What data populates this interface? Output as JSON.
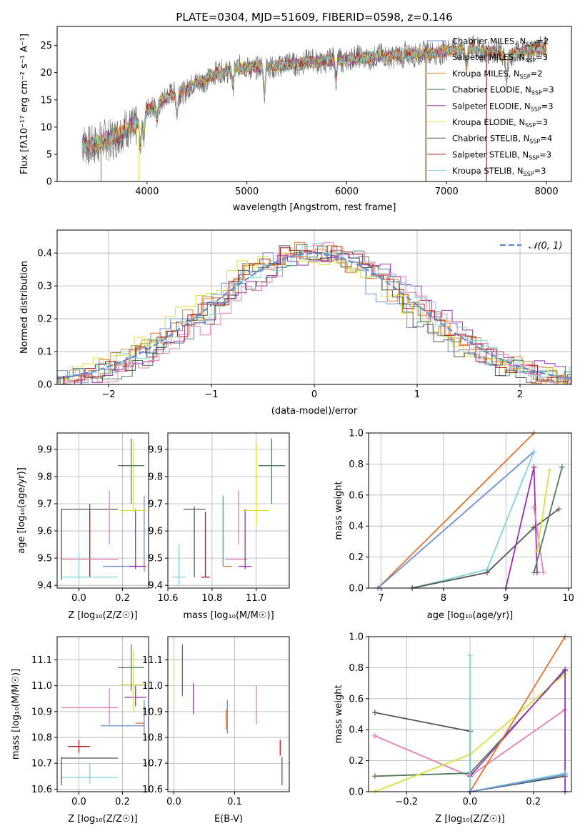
{
  "figure_title": "PLATE=0304, MJD=51609, FIBERID=0598, z=0.146",
  "colors": {
    "Chabrier MILES": "#6a8fd0",
    "Salpeter MILES": "#e2732c",
    "Kroupa MILES": "#c98a2e",
    "Chabrier ELODIE": "#4f7d5a",
    "Salpeter ELODIE": "#9b2fb5",
    "Kroupa ELODIE": "#d6e23c",
    "Chabrier STELIB": "#555555",
    "Salpeter STELIB": "#b01818",
    "Kroupa STELIB": "#7fd6d6",
    "pink": "#e47fb0",
    "normal": "#5b8bd9"
  },
  "chart_data": [
    {
      "id": "spectrum",
      "type": "line",
      "title": "PLATE=0304, MJD=51609, FIBERID=0598, z=0.146",
      "xlabel": "wavelength [Angstrom, rest frame]",
      "ylabel": "Flux [fλ10⁻¹⁷ erg cm⁻² s⁻¹ A⁻¹]",
      "xlim": [
        3100,
        8250
      ],
      "ylim": [
        0,
        28.5
      ],
      "xticks": [
        4000,
        5000,
        6000,
        7000,
        8000
      ],
      "yticks": [
        0,
        5,
        10,
        15,
        20,
        25
      ],
      "grid": false,
      "legend_position": "upper-right",
      "legend": [
        {
          "label": "Chabrier MILES, N",
          "sub": "SSP",
          "suffix": "=2",
          "color": "#6a8fd0"
        },
        {
          "label": "Salpeter MILES, N",
          "sub": "SSP",
          "suffix": "=3",
          "color": "#e2732c"
        },
        {
          "label": "Kroupa MILES, N",
          "sub": "SSP",
          "suffix": "=2",
          "color": "#c98a2e"
        },
        {
          "label": "Chabrier ELODIE, N",
          "sub": "SSP",
          "suffix": "=3",
          "color": "#4f7d5a"
        },
        {
          "label": "Salpeter ELODIE, N",
          "sub": "SSP",
          "suffix": "=3",
          "color": "#9b2fb5"
        },
        {
          "label": "Kroupa ELODIE, N",
          "sub": "SSP",
          "suffix": "=3",
          "color": "#d6e23c"
        },
        {
          "label": "Chabrier STELIB, N",
          "sub": "SSP",
          "suffix": "=4",
          "color": "#555555"
        },
        {
          "label": "Salpeter STELIB, N",
          "sub": "SSP",
          "suffix": "=3",
          "color": "#b01818"
        },
        {
          "label": "Kroupa STELIB, N",
          "sub": "SSP",
          "suffix": "=3",
          "color": "#7fd6d6"
        }
      ],
      "continuum": [
        [
          3350,
          7
        ],
        [
          3500,
          6.8
        ],
        [
          3700,
          8.5
        ],
        [
          3900,
          10.5
        ],
        [
          4000,
          13
        ],
        [
          4200,
          15.5
        ],
        [
          4400,
          17
        ],
        [
          4600,
          19
        ],
        [
          4800,
          20.5
        ],
        [
          5000,
          21
        ],
        [
          5200,
          21
        ],
        [
          5400,
          21.5
        ],
        [
          5600,
          22
        ],
        [
          5800,
          22.2
        ],
        [
          6000,
          22.5
        ],
        [
          6200,
          22.8
        ],
        [
          6400,
          23
        ],
        [
          6600,
          23.5
        ],
        [
          6800,
          23.5
        ],
        [
          7000,
          24
        ],
        [
          7200,
          24.5
        ],
        [
          7400,
          24
        ],
        [
          7600,
          23
        ],
        [
          7800,
          24
        ],
        [
          8000,
          24.5
        ]
      ],
      "absorption": [
        [
          3934,
          5
        ],
        [
          3968,
          4
        ],
        [
          4102,
          3
        ],
        [
          4300,
          4
        ],
        [
          4861,
          3
        ],
        [
          5175,
          5
        ],
        [
          5893,
          4
        ],
        [
          6563,
          2
        ],
        [
          7200,
          4
        ],
        [
          7600,
          5
        ]
      ],
      "dropouts": [
        [
          3540,
          "#e2732c"
        ],
        [
          3920,
          "#d6e23c"
        ],
        [
          6790,
          "#e2732c"
        ],
        [
          6800,
          "#7fd6d6"
        ],
        [
          7400,
          "#b01818"
        ]
      ]
    },
    {
      "id": "residuals",
      "type": "histogram",
      "xlabel": "(data-model)/error",
      "ylabel": "Normed distribution",
      "xlim": [
        -2.5,
        2.5
      ],
      "ylim": [
        0,
        0.47
      ],
      "xticks": [
        -2,
        -1,
        0,
        1,
        2
      ],
      "yticks": [
        0.0,
        0.1,
        0.2,
        0.3,
        0.4
      ],
      "grid": true,
      "legend_position": "upper-right",
      "legend": [
        {
          "label": "𝒩(0, 1)",
          "color": "#5b8bd9",
          "style": "dashed"
        }
      ],
      "curve": "normal(0,1)",
      "bin_width": 0.1
    },
    {
      "id": "age-vs-Z",
      "type": "errorbar",
      "xlabel": "Z [log10(Z/Z☉)]",
      "ylabel": "age  [log10(age/yr)]",
      "xlim": [
        -0.1,
        0.32
      ],
      "ylim": [
        9.39,
        9.96
      ],
      "xticks": [
        0.0,
        0.2
      ],
      "yticks": [
        9.4,
        9.5,
        9.6,
        9.7,
        9.8,
        9.9
      ],
      "grid": true,
      "points": [
        {
          "c": "Chabrier STELIB",
          "x": 0.05,
          "xe": 0.13,
          "y": 9.68,
          "ye": 0.02
        },
        {
          "c": "Chabrier STELIB",
          "x": -0.08,
          "xe": 0.0,
          "y": 9.55,
          "ye": 0.13
        },
        {
          "c": "Salpeter STELIB",
          "x": 0.05,
          "xe": 0.0,
          "y": 9.55,
          "ye": 0.12
        },
        {
          "c": "Kroupa STELIB",
          "x": 0.05,
          "xe": 0.13,
          "y": 9.43,
          "ye": 0.0
        },
        {
          "c": "Kroupa STELIB",
          "x": 0.0,
          "xe": 0.0,
          "y": 9.47,
          "ye": 0.05
        },
        {
          "c": "pink",
          "x": 0.05,
          "xe": 0.13,
          "y": 9.495,
          "ye": 0.0
        },
        {
          "c": "pink",
          "x": 0.14,
          "xe": 0.0,
          "y": 9.65,
          "ye": 0.1
        },
        {
          "c": "Chabrier MILES",
          "x": 0.2,
          "xe": 0.09,
          "y": 9.47,
          "ye": 0.0
        },
        {
          "c": "Chabrier MILES",
          "x": 0.3,
          "xe": 0.0,
          "y": 9.6,
          "ye": 0.13
        },
        {
          "c": "Salpeter ELODIE",
          "x": 0.27,
          "xe": 0.04,
          "y": 9.47,
          "ye": 0.0
        },
        {
          "c": "Salpeter ELODIE",
          "x": 0.26,
          "xe": 0.0,
          "y": 9.57,
          "ye": 0.11
        },
        {
          "c": "Kroupa ELODIE",
          "x": 0.25,
          "xe": 0.06,
          "y": 9.675,
          "ye": 0.0
        },
        {
          "c": "Kroupa ELODIE",
          "x": 0.25,
          "xe": 0.0,
          "y": 9.8,
          "ye": 0.13
        },
        {
          "c": "Chabrier ELODIE",
          "x": 0.24,
          "xe": 0.06,
          "y": 9.84,
          "ye": 0.0
        },
        {
          "c": "Chabrier ELODIE",
          "x": 0.24,
          "xe": 0.0,
          "y": 9.82,
          "ye": 0.12
        },
        {
          "c": "Salpeter MILES",
          "x": 0.3,
          "xe": 0.0,
          "y": 9.47,
          "ye": 0.02
        }
      ]
    },
    {
      "id": "age-vs-mass",
      "type": "errorbar",
      "xlabel": "mass [log10(M/M☉)]",
      "ylabel": "",
      "xlim": [
        10.6,
        11.15
      ],
      "ylim": [
        9.39,
        9.96
      ],
      "xticks": [
        10.6,
        10.8,
        11.0
      ],
      "yticks": [
        9.4,
        9.5,
        9.6,
        9.7,
        9.8,
        9.9
      ],
      "grid": true,
      "points": [
        {
          "c": "Kroupa STELIB",
          "x": 10.65,
          "xe": 0.03,
          "y": 9.43,
          "ye": 0.0
        },
        {
          "c": "Kroupa STELIB",
          "x": 10.65,
          "xe": 0.0,
          "y": 9.475,
          "ye": 0.075
        },
        {
          "c": "Chabrier STELIB",
          "x": 10.72,
          "xe": 0.05,
          "y": 9.68,
          "ye": 0.0
        },
        {
          "c": "Chabrier STELIB",
          "x": 10.72,
          "xe": 0.0,
          "y": 9.56,
          "ye": 0.13
        },
        {
          "c": "Salpeter STELIB",
          "x": 10.77,
          "xe": 0.02,
          "y": 9.43,
          "ye": 0.0
        },
        {
          "c": "Salpeter STELIB",
          "x": 10.77,
          "xe": 0.0,
          "y": 9.55,
          "ye": 0.12
        },
        {
          "c": "Chabrier MILES",
          "x": 10.85,
          "xe": 0.0,
          "y": 9.6,
          "ye": 0.13
        },
        {
          "c": "pink",
          "x": 10.91,
          "xe": 0.05,
          "y": 9.495,
          "ye": 0.0
        },
        {
          "c": "pink",
          "x": 10.92,
          "xe": 0.0,
          "y": 9.65,
          "ye": 0.1
        },
        {
          "c": "Salpeter ELODIE",
          "x": 10.95,
          "xe": 0.03,
          "y": 9.47,
          "ye": 0.0
        },
        {
          "c": "Salpeter ELODIE",
          "x": 10.95,
          "xe": 0.0,
          "y": 9.57,
          "ye": 0.11
        },
        {
          "c": "Salpeter MILES",
          "x": 10.87,
          "xe": 0.02,
          "y": 9.47,
          "ye": 0.0
        },
        {
          "c": "Kroupa ELODIE",
          "x": 11.0,
          "xe": 0.06,
          "y": 9.675,
          "ye": 0.0
        },
        {
          "c": "Kroupa ELODIE",
          "x": 11.0,
          "xe": 0.0,
          "y": 9.77,
          "ye": 0.15
        },
        {
          "c": "Chabrier ELODIE",
          "x": 11.07,
          "xe": 0.06,
          "y": 9.84,
          "ye": 0.0
        },
        {
          "c": "Chabrier ELODIE",
          "x": 11.07,
          "xe": 0.0,
          "y": 9.82,
          "ye": 0.12
        }
      ]
    },
    {
      "id": "massweight-vs-age",
      "type": "line",
      "xlabel": "age  [log10(age/yr)]",
      "ylabel": "mass weight",
      "xlim": [
        6.8,
        10.05
      ],
      "ylim": [
        0,
        1.0
      ],
      "xticks": [
        7,
        8,
        9,
        10
      ],
      "yticks": [
        0.0,
        0.2,
        0.4,
        0.6,
        0.8,
        1.0
      ],
      "grid": true,
      "series": [
        {
          "c": "Salpeter MILES",
          "x": [
            6.95,
            9.45
          ],
          "y": [
            0.0,
            1.0
          ]
        },
        {
          "c": "Chabrier MILES",
          "x": [
            6.95,
            9.45
          ],
          "y": [
            0.0,
            0.88
          ]
        },
        {
          "c": "Kroupa STELIB",
          "x": [
            7.5,
            8.7,
            9.45
          ],
          "y": [
            0.0,
            0.12,
            0.88
          ]
        },
        {
          "c": "Chabrier STELIB",
          "x": [
            7.5,
            8.7,
            9.45,
            9.85
          ],
          "y": [
            0.0,
            0.1,
            0.39,
            0.51
          ]
        },
        {
          "c": "Salpeter ELODIE",
          "x": [
            9.0,
            9.45,
            9.5
          ],
          "y": [
            0.0,
            0.78,
            0.1
          ]
        },
        {
          "c": "pink",
          "x": [
            9.45,
            9.6
          ],
          "y": [
            0.52,
            0.1
          ]
        },
        {
          "c": "Kroupa ELODIE",
          "x": [
            9.5,
            9.7
          ],
          "y": [
            0.24,
            0.76
          ]
        },
        {
          "c": "Chabrier ELODIE",
          "x": [
            9.45,
            9.9
          ],
          "y": [
            0.1,
            0.78
          ]
        }
      ]
    },
    {
      "id": "mass-vs-Z",
      "type": "errorbar",
      "xlabel": "Z [log10(Z/Z☉)]",
      "ylabel": "mass [log10(M/M☉)]",
      "xlim": [
        -0.1,
        0.32
      ],
      "ylim": [
        10.59,
        11.19
      ],
      "xticks": [
        0.0,
        0.2
      ],
      "yticks": [
        10.6,
        10.7,
        10.8,
        10.9,
        11.0,
        11.1
      ],
      "grid": true,
      "points": [
        {
          "c": "Kroupa STELIB",
          "x": 0.05,
          "xe": 0.13,
          "y": 10.645,
          "ye": 0.0
        },
        {
          "c": "Kroupa STELIB",
          "x": 0.05,
          "xe": 0.0,
          "y": 10.66,
          "ye": 0.04
        },
        {
          "c": "Chabrier STELIB",
          "x": 0.05,
          "xe": 0.13,
          "y": 10.72,
          "ye": 0.0
        },
        {
          "c": "Chabrier STELIB",
          "x": -0.08,
          "xe": 0.0,
          "y": 10.67,
          "ye": 0.055
        },
        {
          "c": "Salpeter STELIB",
          "x": 0.0,
          "xe": 0.05,
          "y": 10.765,
          "ye": 0.0
        },
        {
          "c": "Salpeter STELIB",
          "x": 0.0,
          "xe": 0.0,
          "y": 10.765,
          "ye": 0.025
        },
        {
          "c": "pink",
          "x": 0.05,
          "xe": 0.13,
          "y": 10.915,
          "ye": 0.0
        },
        {
          "c": "pink",
          "x": 0.14,
          "xe": 0.0,
          "y": 10.92,
          "ye": 0.07
        },
        {
          "c": "Chabrier MILES",
          "x": 0.2,
          "xe": 0.1,
          "y": 10.845,
          "ye": 0.0
        },
        {
          "c": "Chabrier MILES",
          "x": 0.3,
          "xe": 0.0,
          "y": 10.88,
          "ye": 0.065
        },
        {
          "c": "Salpeter MILES",
          "x": 0.28,
          "xe": 0.02,
          "y": 10.855,
          "ye": 0.0
        },
        {
          "c": "Salpeter ELODIE",
          "x": 0.26,
          "xe": 0.05,
          "y": 10.955,
          "ye": 0.0
        },
        {
          "c": "Salpeter ELODIE",
          "x": 0.26,
          "xe": 0.0,
          "y": 10.96,
          "ye": 0.04
        },
        {
          "c": "Kroupa ELODIE",
          "x": 0.25,
          "xe": 0.06,
          "y": 11.005,
          "ye": 0.0
        },
        {
          "c": "Kroupa ELODIE",
          "x": 0.25,
          "xe": 0.0,
          "y": 11.02,
          "ye": 0.12
        },
        {
          "c": "Chabrier ELODIE",
          "x": 0.24,
          "xe": 0.06,
          "y": 11.07,
          "ye": 0.0
        },
        {
          "c": "Chabrier ELODIE",
          "x": 0.24,
          "xe": 0.0,
          "y": 11.07,
          "ye": 0.09
        }
      ]
    },
    {
      "id": "mass-vs-EBV",
      "type": "errorbar",
      "xlabel": "E(B-V)",
      "ylabel": "",
      "xlim": [
        -0.01,
        0.19
      ],
      "ylim": [
        10.59,
        11.19
      ],
      "xticks": [
        0.0,
        0.1
      ],
      "yticks": [
        10.6,
        10.7,
        10.8,
        10.9,
        11.0,
        11.1
      ],
      "grid": true,
      "points": [
        {
          "c": "Kroupa ELODIE",
          "x": 0.0,
          "xe": 0.0,
          "y": 11.02,
          "ye": 0.1
        },
        {
          "c": "Chabrier ELODIE",
          "x": 0.014,
          "xe": 0.0,
          "y": 11.06,
          "ye": 0.1
        },
        {
          "c": "Salpeter ELODIE",
          "x": 0.032,
          "xe": 0.0,
          "y": 10.95,
          "ye": 0.06
        },
        {
          "c": "Salpeter MILES",
          "x": 0.086,
          "xe": 0.0,
          "y": 10.87,
          "ye": 0.04
        },
        {
          "c": "Chabrier MILES",
          "x": 0.088,
          "xe": 0.0,
          "y": 10.88,
          "ye": 0.065
        },
        {
          "c": "pink",
          "x": 0.136,
          "xe": 0.0,
          "y": 10.925,
          "ye": 0.075
        },
        {
          "c": "Salpeter STELIB",
          "x": 0.175,
          "xe": 0.0,
          "y": 10.76,
          "ye": 0.03
        },
        {
          "c": "Chabrier STELIB",
          "x": 0.178,
          "xe": 0.0,
          "y": 10.67,
          "ye": 0.055
        },
        {
          "c": "Kroupa STELIB",
          "x": 0.179,
          "xe": 0.0,
          "y": 10.66,
          "ye": 0.04
        }
      ]
    },
    {
      "id": "massweight-vs-Z",
      "type": "line",
      "xlabel": "Z [log10(Z/Z☉)]",
      "ylabel": "mass weight",
      "xlim": [
        -0.32,
        0.32
      ],
      "ylim": [
        0,
        1.0
      ],
      "xticks": [
        -0.2,
        0.0,
        0.2
      ],
      "yticks": [
        0.0,
        0.2,
        0.4,
        0.6,
        0.8,
        1.0
      ],
      "grid": true,
      "series": [
        {
          "c": "Chabrier STELIB",
          "x": [
            -0.3,
            0.0,
            0.0,
            0.3
          ],
          "y": [
            0.51,
            0.39,
            0.0,
            0.1
          ]
        },
        {
          "c": "pink",
          "x": [
            -0.3,
            0.0,
            0.3
          ],
          "y": [
            0.36,
            0.1,
            0.53
          ]
        },
        {
          "c": "Chabrier ELODIE",
          "x": [
            -0.3,
            0.0,
            0.3
          ],
          "y": [
            0.1,
            0.12,
            0.78
          ]
        },
        {
          "c": "Kroupa ELODIE",
          "x": [
            -0.3,
            0.0,
            0.3
          ],
          "y": [
            0.0,
            0.24,
            0.76
          ]
        },
        {
          "c": "Salpeter ELODIE",
          "x": [
            0.0,
            0.3,
            0.3
          ],
          "y": [
            0.1,
            0.79,
            0.0
          ]
        },
        {
          "c": "Salpeter MILES",
          "x": [
            0.0,
            0.3
          ],
          "y": [
            0.0,
            1.0
          ]
        },
        {
          "c": "Kroupa STELIB",
          "x": [
            0.0,
            0.0,
            0.3
          ],
          "y": [
            0.88,
            0.0,
            0.12
          ]
        },
        {
          "c": "Chabrier MILES",
          "x": [
            0.0,
            0.3
          ],
          "y": [
            0.0,
            0.11
          ]
        }
      ]
    }
  ]
}
